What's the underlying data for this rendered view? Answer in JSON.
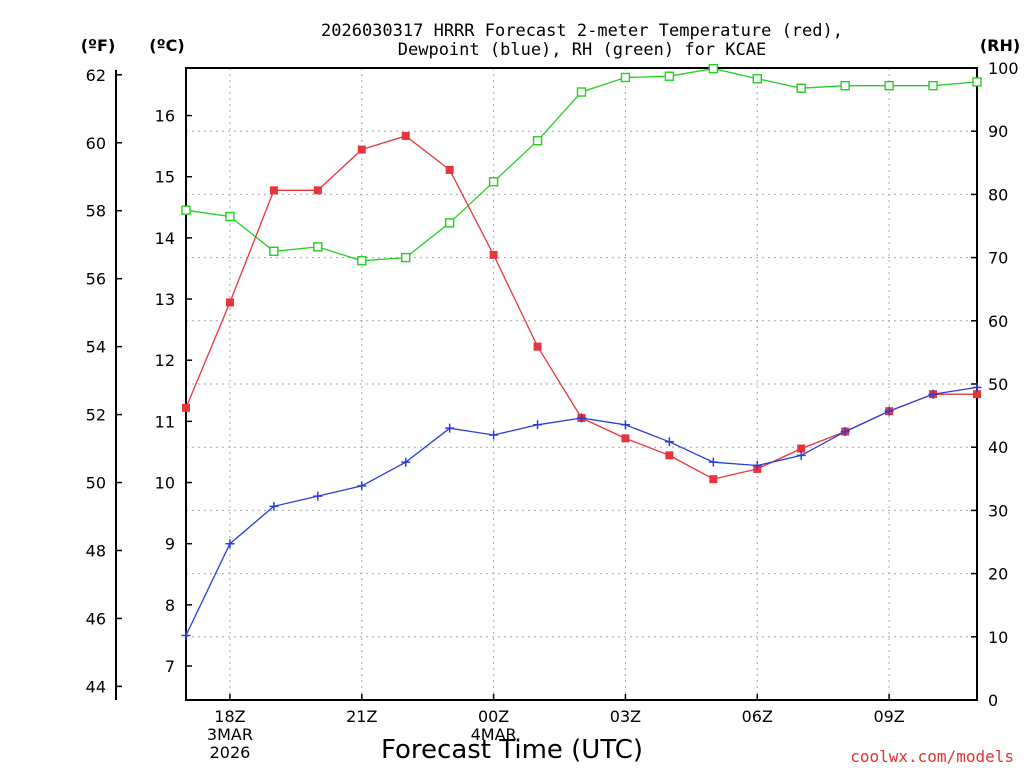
{
  "chart_data": {
    "type": "line",
    "title_lines": [
      "2026030317 HRRR Forecast 2-meter Temperature (red),",
      "Dewpoint (blue), RH (green) for KCAE"
    ],
    "xlabel": "Forecast Time (UTC)",
    "credit": "coolwx.com/models",
    "axis_units": {
      "fahrenheit": "(ºF)",
      "celsius": "(ºC)",
      "rh": "(RH)"
    },
    "x_hours": [
      17,
      18,
      19,
      20,
      21,
      22,
      23,
      24,
      25,
      26,
      27,
      28,
      29,
      30,
      31,
      32,
      33,
      34,
      35
    ],
    "x_range": [
      17,
      35
    ],
    "x_ticks": [
      {
        "hour": 18,
        "lines": [
          "18Z",
          "3MAR",
          "2026"
        ]
      },
      {
        "hour": 21,
        "lines": [
          "21Z"
        ]
      },
      {
        "hour": 24,
        "lines": [
          "00Z",
          "4MAR"
        ]
      },
      {
        "hour": 27,
        "lines": [
          "03Z"
        ]
      },
      {
        "hour": 30,
        "lines": [
          "06Z"
        ]
      },
      {
        "hour": 33,
        "lines": [
          "09Z"
        ]
      }
    ],
    "fahrenheit_range": [
      43.6,
      62.2
    ],
    "fahrenheit_ticks": [
      44,
      46,
      48,
      50,
      52,
      54,
      56,
      58,
      60,
      62
    ],
    "celsius_ticks": [
      7,
      8,
      9,
      10,
      11,
      12,
      13,
      14,
      15,
      16
    ],
    "rh_range": [
      0,
      100
    ],
    "rh_ticks": [
      0,
      10,
      20,
      30,
      40,
      50,
      60,
      70,
      80,
      90,
      100
    ],
    "series": [
      {
        "key": "temperature",
        "unit": "F",
        "color": "#e8353a",
        "marker": "filled-square",
        "values": [
          52.2,
          55.3,
          58.6,
          58.6,
          59.8,
          60.2,
          59.2,
          56.7,
          54.0,
          51.9,
          51.3,
          50.8,
          50.1,
          50.4,
          51.0,
          51.5,
          52.1,
          52.6,
          52.6
        ]
      },
      {
        "key": "dewpoint",
        "unit": "F",
        "color": "#2a3edc",
        "marker": "plus",
        "values": [
          45.5,
          48.2,
          49.3,
          49.6,
          49.9,
          50.6,
          51.6,
          51.4,
          51.7,
          51.9,
          51.7,
          51.2,
          50.6,
          50.5,
          50.8,
          51.5,
          52.1,
          52.6,
          52.8
        ]
      },
      {
        "key": "rh",
        "unit": "%",
        "color": "#22d022",
        "marker": "open-square",
        "values": [
          77.5,
          76.5,
          71,
          71.7,
          69.5,
          70,
          75.5,
          82,
          88.5,
          96.2,
          98.5,
          98.7,
          99.9,
          98.3,
          96.8,
          97.2,
          97.2,
          97.2,
          97.8
        ]
      }
    ]
  }
}
